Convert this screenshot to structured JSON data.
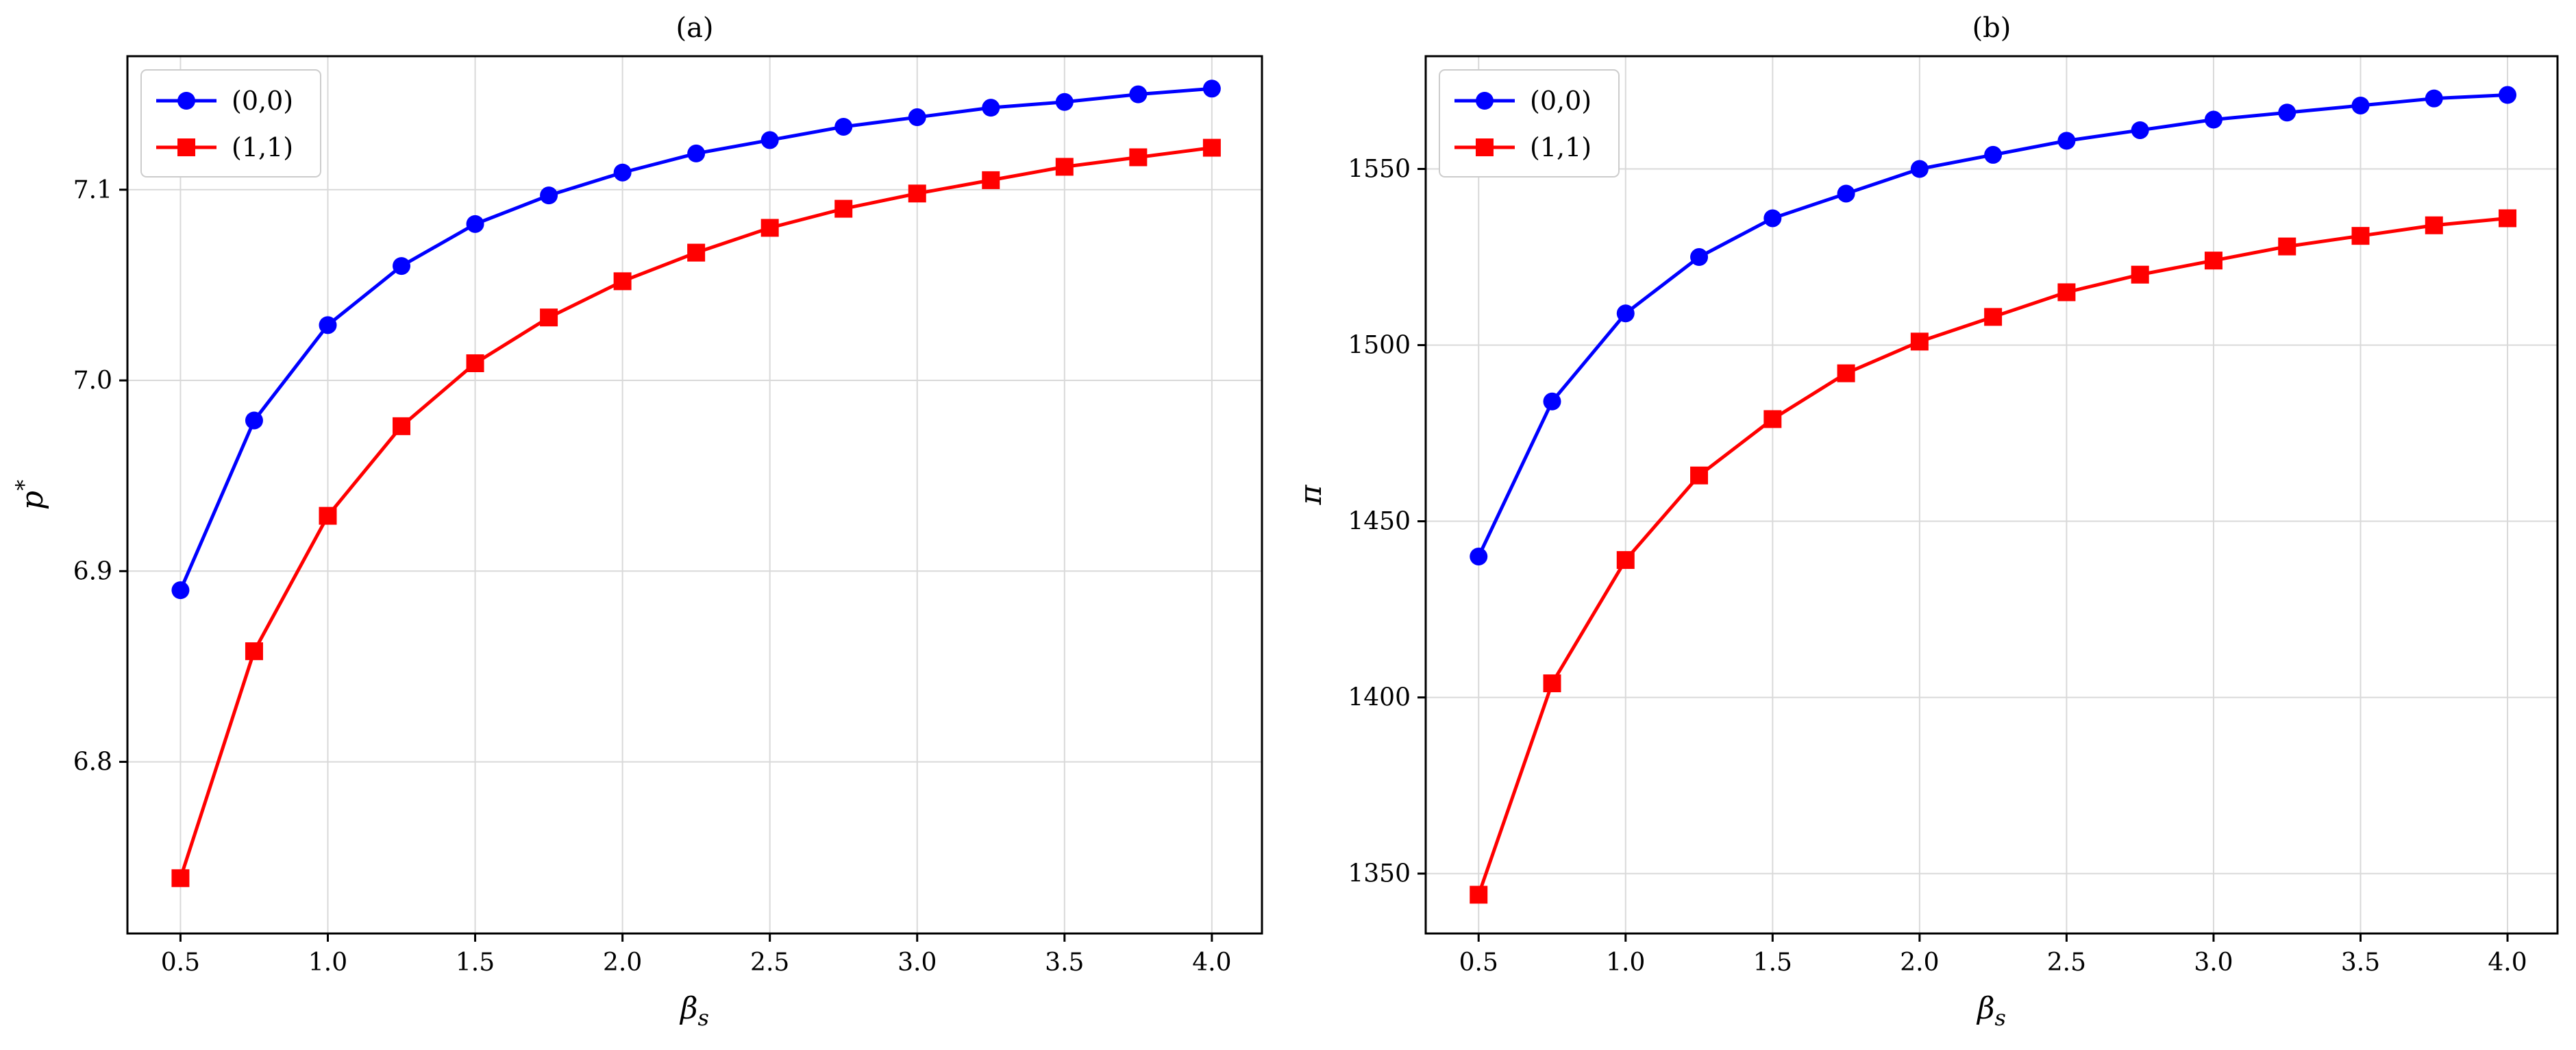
{
  "chart_data": [
    {
      "type": "line",
      "title": "(a)",
      "xlabel": "β_s",
      "xlabel_main": "β",
      "xlabel_sub": "s",
      "ylabel": "p*",
      "ylabel_main": "p",
      "ylabel_sup": "*",
      "x": [
        0.5,
        0.75,
        1.0,
        1.25,
        1.5,
        1.75,
        2.0,
        2.25,
        2.5,
        2.75,
        3.0,
        3.25,
        3.5,
        3.75,
        4.0
      ],
      "xlim": [
        0.32,
        4.17
      ],
      "ylim": [
        6.71,
        7.17
      ],
      "xticks": [
        0.5,
        1.0,
        1.5,
        2.0,
        2.5,
        3.0,
        3.5,
        4.0
      ],
      "xtick_labels": [
        "0.5",
        "1.0",
        "1.5",
        "2.0",
        "2.5",
        "3.0",
        "3.5",
        "4.0"
      ],
      "yticks": [
        6.8,
        6.9,
        7.0,
        7.1
      ],
      "ytick_labels": [
        "6.8",
        "6.9",
        "7.0",
        "7.1"
      ],
      "grid": true,
      "legend_position": "top-left",
      "series": [
        {
          "name": "(0,0)",
          "color": "#0000ff",
          "marker": "circle",
          "values": [
            6.89,
            6.979,
            7.029,
            7.06,
            7.082,
            7.097,
            7.109,
            7.119,
            7.126,
            7.133,
            7.138,
            7.143,
            7.146,
            7.15,
            7.153
          ]
        },
        {
          "name": "(1,1)",
          "color": "#ff0000",
          "marker": "square",
          "values": [
            6.739,
            6.858,
            6.929,
            6.976,
            7.009,
            7.033,
            7.052,
            7.067,
            7.08,
            7.09,
            7.098,
            7.105,
            7.112,
            7.117,
            7.122
          ]
        }
      ]
    },
    {
      "type": "line",
      "title": "(b)",
      "xlabel": "β_s",
      "xlabel_main": "β",
      "xlabel_sub": "s",
      "ylabel": "π",
      "ylabel_main": "π",
      "ylabel_sup": "",
      "x": [
        0.5,
        0.75,
        1.0,
        1.25,
        1.5,
        1.75,
        2.0,
        2.25,
        2.5,
        2.75,
        3.0,
        3.25,
        3.5,
        3.75,
        4.0
      ],
      "xlim": [
        0.32,
        4.17
      ],
      "ylim": [
        1333,
        1582
      ],
      "xticks": [
        0.5,
        1.0,
        1.5,
        2.0,
        2.5,
        3.0,
        3.5,
        4.0
      ],
      "xtick_labels": [
        "0.5",
        "1.0",
        "1.5",
        "2.0",
        "2.5",
        "3.0",
        "3.5",
        "4.0"
      ],
      "yticks": [
        1350,
        1400,
        1450,
        1500,
        1550
      ],
      "ytick_labels": [
        "1350",
        "1400",
        "1450",
        "1500",
        "1550"
      ],
      "grid": true,
      "legend_position": "top-left",
      "series": [
        {
          "name": "(0,0)",
          "color": "#0000ff",
          "marker": "circle",
          "values": [
            1440,
            1484,
            1509,
            1525,
            1536,
            1543,
            1550,
            1554,
            1558,
            1561,
            1564,
            1566,
            1568,
            1570,
            1571
          ]
        },
        {
          "name": "(1,1)",
          "color": "#ff0000",
          "marker": "square",
          "values": [
            1344,
            1404,
            1439,
            1463,
            1479,
            1492,
            1501,
            1508,
            1515,
            1520,
            1524,
            1528,
            1531,
            1534,
            1536
          ]
        }
      ]
    }
  ]
}
